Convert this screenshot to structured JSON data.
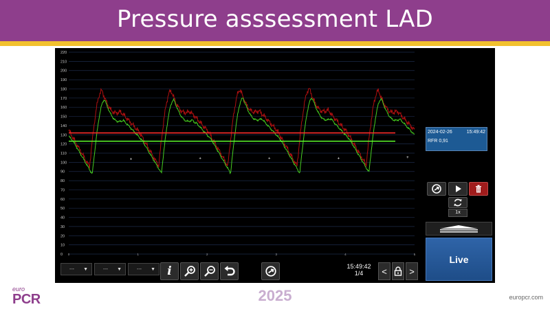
{
  "slide": {
    "title": "Pressure asssessment LAD",
    "year": "2025",
    "logo_small": "euro",
    "logo_big": "PCR",
    "site": "europcr.com"
  },
  "plot": {
    "y_ticks": [
      "220",
      "210",
      "200",
      "190",
      "180",
      "170",
      "160",
      "150",
      "140",
      "130",
      "120",
      "110",
      "100",
      "90",
      "80",
      "70",
      "60",
      "50",
      "40",
      "30",
      "20",
      "10",
      "0"
    ],
    "x_ticks": [
      "0",
      "1",
      "2",
      "3",
      "4",
      "5"
    ],
    "ylim": [
      0,
      220
    ],
    "xlim": [
      0,
      5
    ],
    "colors": {
      "pa_mean": "#ff2d2d",
      "pd_mean": "#5fff2d",
      "pa_wave": "#b01010",
      "pd_wave": "#47d020",
      "grid": "#1c2b4a"
    },
    "pa_mean": 132,
    "pd_mean": 123,
    "pa_peaks": [
      178,
      178,
      179,
      180,
      178
    ],
    "pd_peaks": [
      168,
      168,
      170,
      170,
      169
    ],
    "pa_troughs": [
      95,
      96,
      96,
      96,
      97
    ],
    "pd_troughs": [
      87,
      88,
      88,
      88,
      89
    ],
    "beat_period": 1.0
  },
  "panel": {
    "info_date": "2024-02-26",
    "info_time": "15:49:42",
    "info_rfr": "RFR 0,91",
    "speed": "1x",
    "live_label": "Live"
  },
  "toolbar": {
    "dropdown1": "---",
    "dropdown2": "---",
    "dropdown3": "---",
    "info_icon": "i",
    "time": "15:49:42",
    "page": "1/4",
    "prev": "<",
    "next": ">"
  },
  "icons": {
    "share": "share-icon",
    "play": "play-icon",
    "delete": "trash-icon",
    "refresh": "refresh-icon",
    "zoom_in": "zoom-in-icon",
    "zoom_out": "zoom-out-icon",
    "undo": "undo-icon",
    "lock": "lock-icon"
  }
}
